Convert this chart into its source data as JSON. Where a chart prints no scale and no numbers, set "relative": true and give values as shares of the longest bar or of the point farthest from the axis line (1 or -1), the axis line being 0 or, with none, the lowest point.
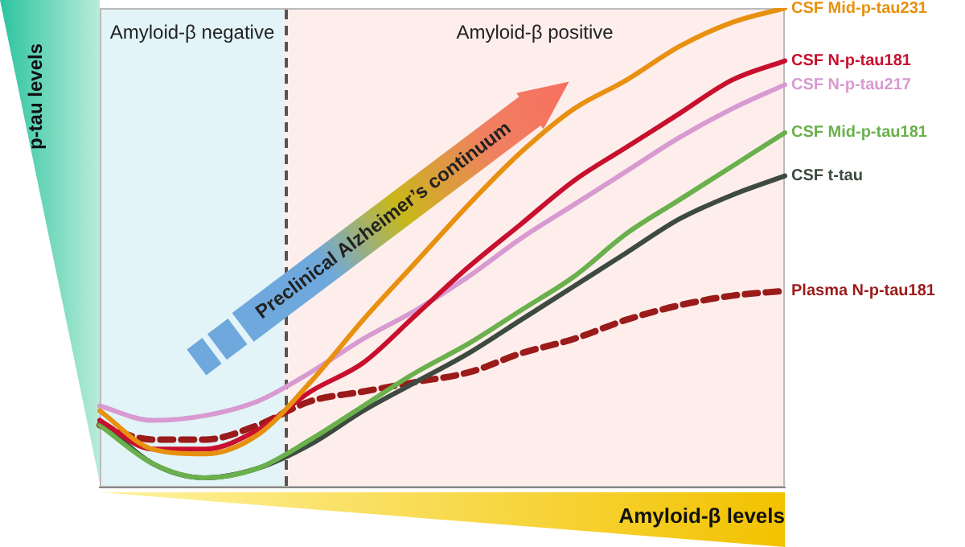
{
  "chart_data": {
    "type": "line",
    "relative": true,
    "xlabel": "Amyloid-β levels",
    "ylabel": "p-tau levels",
    "categories": [
      null,
      null,
      null,
      null,
      null,
      null,
      null,
      null,
      null,
      null,
      null,
      null,
      null,
      null
    ],
    "tick_labels": false,
    "legend": false,
    "marker": "none",
    "series": [
      {
        "name": "CSF Mid-p-tau231",
        "color": "#e8900f",
        "values": [
          0.16,
          0.08,
          0.07,
          0.11,
          0.22,
          0.35,
          0.47,
          0.59,
          0.7,
          0.79,
          0.85,
          0.92,
          0.97,
          1
        ]
      },
      {
        "name": "CSF N-p-tau181",
        "color": "#c8102e",
        "values": [
          0.14,
          0.08,
          0.08,
          0.12,
          0.2,
          0.26,
          0.36,
          0.46,
          0.55,
          0.64,
          0.71,
          0.78,
          0.85,
          0.89
        ]
      },
      {
        "name": "CSF N-p-tau217",
        "color": "#d89ad0",
        "values": [
          0.17,
          0.14,
          0.15,
          0.18,
          0.24,
          0.31,
          0.37,
          0.44,
          0.52,
          0.59,
          0.66,
          0.73,
          0.79,
          0.84
        ]
      },
      {
        "name": "CSF Mid-p-tau181",
        "color": "#6ab04c",
        "values": [
          0.13,
          0.05,
          0.02,
          0.04,
          0.1,
          0.17,
          0.24,
          0.3,
          0.37,
          0.44,
          0.53,
          0.6,
          0.67,
          0.74
        ]
      },
      {
        "name": "CSF t-tau",
        "color": "#3d4a3f",
        "values": [
          0.14,
          0.05,
          0.02,
          0.04,
          0.09,
          0.16,
          0.22,
          0.28,
          0.35,
          0.42,
          0.49,
          0.56,
          0.61,
          0.65
        ]
      },
      {
        "name": "Plasma N-p-tau181",
        "color": "#9b1b1b",
        "line_style": "dashed",
        "values": [
          0.13,
          0.1,
          0.1,
          0.13,
          0.18,
          0.2,
          0.22,
          0.24,
          0.28,
          0.31,
          0.35,
          0.38,
          0.4,
          0.41
        ]
      }
    ],
    "annotations": [
      "Amyloid-β negative",
      "Amyloid-β positive",
      "Preclinical Alzheimer’s continuum"
    ]
  }
}
